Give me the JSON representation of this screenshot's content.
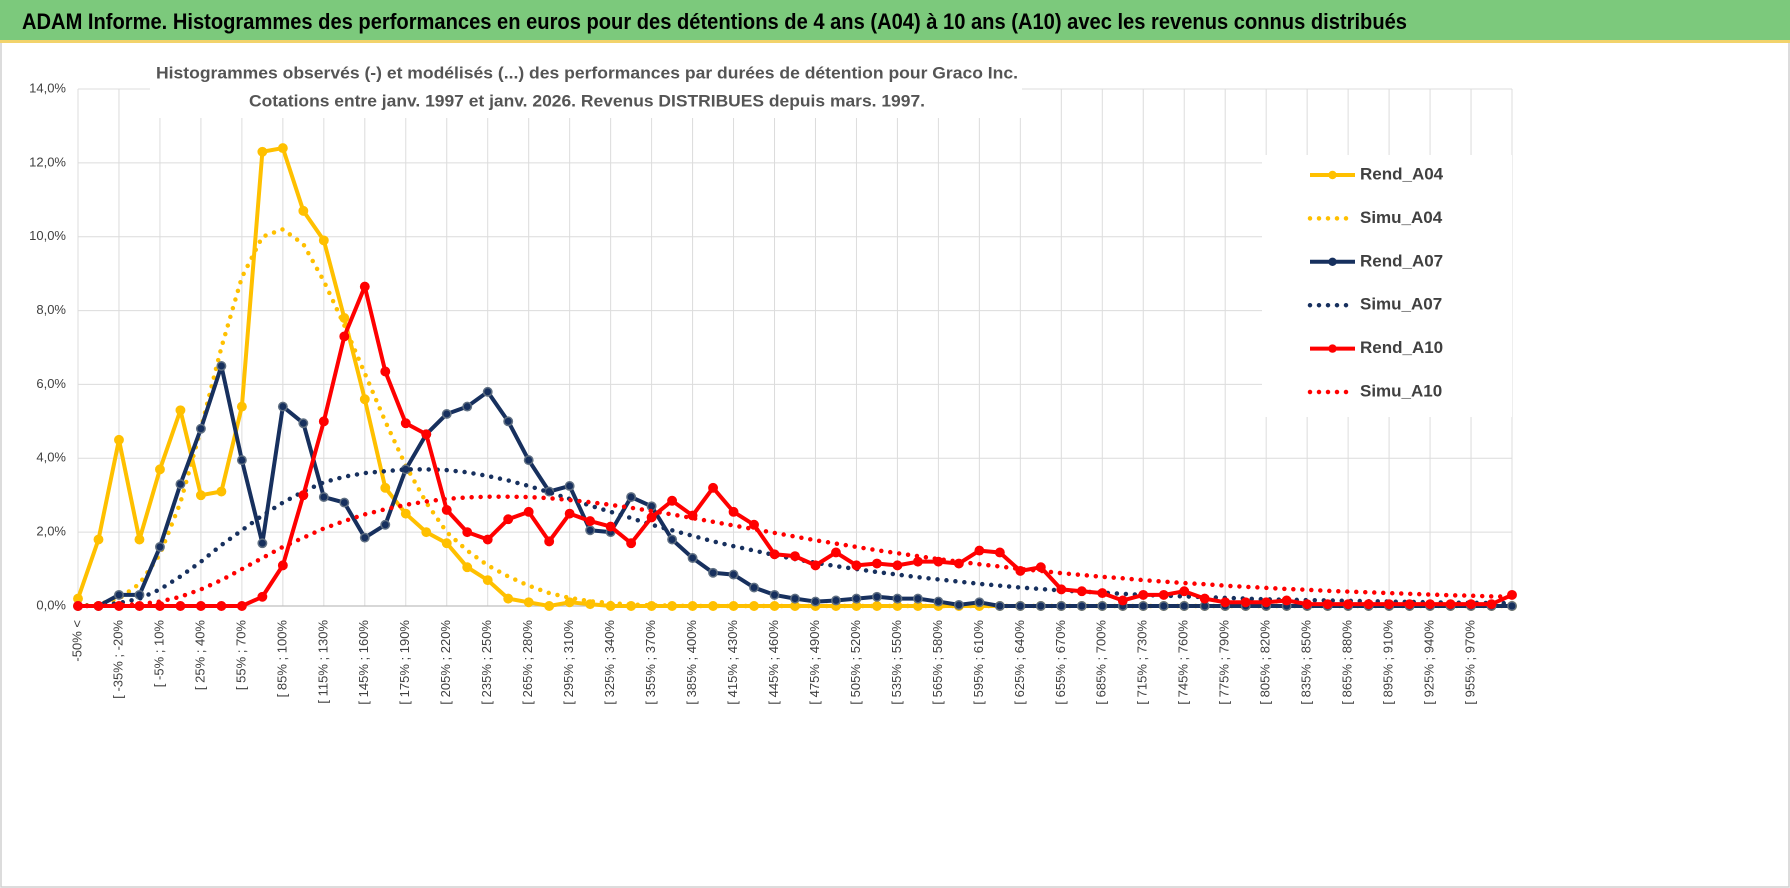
{
  "header": {
    "title": "ADAM Informe. Histogrammes des performances en euros pour des détentions de 4 ans (A04) à 10 ans (A10) avec les revenus connus distribués"
  },
  "chart_data": {
    "type": "line",
    "title": [
      "Histogrammes observés (-) et modélisés (...) des performances par durées de détention pour Graco Inc.",
      "Cotations entre janv. 1997 et janv. 2026. Revenus DISTRIBUES depuis mars. 1997."
    ],
    "categories": [
      "-50% <",
      null,
      "[ -35% ; -20%",
      null,
      "[ -5% ; 10%",
      null,
      "[ 25% ; 40%",
      null,
      "[ 55% ; 70%",
      null,
      "[ 85% ; 100%",
      null,
      "[ 115% ; 130%",
      null,
      "[ 145% ; 160%",
      null,
      "[ 175% ; 190%",
      null,
      "[ 205% ; 220%",
      null,
      "[ 235% ; 250%",
      null,
      "[ 265% ; 280%",
      null,
      "[ 295% ; 310%",
      null,
      "[ 325% ; 340%",
      null,
      "[ 355% ; 370%",
      null,
      "[ 385% ; 400%",
      null,
      "[ 415% ; 430%",
      null,
      "[ 445% ; 460%",
      null,
      "[ 475% ; 490%",
      null,
      "[ 505% ; 520%",
      null,
      "[ 535% ; 550%",
      null,
      "[ 565% ; 580%",
      null,
      "[ 595% ; 610%",
      null,
      "[ 625% ; 640%",
      null,
      "[ 655% ; 670%",
      null,
      "[ 685% ; 700%",
      null,
      "[ 715% ; 730%",
      null,
      "[ 745% ; 760%",
      null,
      "[ 775% ; 790%",
      null,
      "[ 805% ; 820%",
      null,
      "[ 835% ; 850%",
      null,
      "[ 865% ; 880%",
      null,
      "[ 895% ; 910%",
      null,
      "[ 925% ; 940%",
      null,
      "[ 955% ; 970%",
      null,
      null
    ],
    "series": [
      {
        "name": "Rend_A04",
        "color": "#ffc000",
        "style": "solid",
        "markers": true,
        "values": [
          0.2,
          1.8,
          4.5,
          1.8,
          3.7,
          5.3,
          3.0,
          3.1,
          5.4,
          12.3,
          12.4,
          10.7,
          9.9,
          7.8,
          5.6,
          3.2,
          2.5,
          2.0,
          1.7,
          1.05,
          0.7,
          0.2,
          0.1,
          0,
          0.1,
          0.05,
          0,
          0,
          0,
          0,
          0,
          0,
          0,
          0,
          0,
          0,
          0,
          0,
          0,
          0,
          0,
          0,
          0,
          0,
          0,
          0,
          0,
          0,
          0,
          0,
          0,
          0,
          0,
          0,
          0,
          0,
          0,
          0,
          0,
          0,
          0,
          0,
          0,
          0,
          0,
          0,
          0,
          0,
          0,
          0,
          0
        ]
      },
      {
        "name": "Simu_A04",
        "color": "#ffc000",
        "style": "dotted",
        "markers": false,
        "values": [
          0,
          0.05,
          0.2,
          0.6,
          1.4,
          2.8,
          4.8,
          7.0,
          8.9,
          10.0,
          10.2,
          9.8,
          8.8,
          7.6,
          6.3,
          5.0,
          3.8,
          2.8,
          2.0,
          1.5,
          1.1,
          0.8,
          0.55,
          0.35,
          0.22,
          0.13,
          0.08,
          0.04,
          0.02,
          0.01,
          0,
          0,
          0,
          0,
          0,
          0,
          0,
          0,
          0,
          0,
          0,
          0,
          0,
          0,
          0,
          0,
          0,
          0,
          0,
          0,
          0,
          0,
          0,
          0,
          0,
          0,
          0,
          0,
          0,
          0,
          0,
          0,
          0,
          0,
          0,
          0,
          0,
          0,
          0,
          0,
          0
        ]
      },
      {
        "name": "Rend_A07",
        "color": "#17305e",
        "style": "solid",
        "markers": true,
        "values": [
          0,
          0,
          0.3,
          0.3,
          1.6,
          3.3,
          4.8,
          6.5,
          3.95,
          1.7,
          5.4,
          4.95,
          2.95,
          2.8,
          1.85,
          2.2,
          3.7,
          4.65,
          5.2,
          5.4,
          5.8,
          5.0,
          3.95,
          3.1,
          3.25,
          2.05,
          2.0,
          2.95,
          2.7,
          1.8,
          1.3,
          0.9,
          0.85,
          0.5,
          0.3,
          0.2,
          0.12,
          0.15,
          0.2,
          0.25,
          0.2,
          0.2,
          0.12,
          0.03,
          0.1,
          0,
          0,
          0,
          0,
          0,
          0,
          0,
          0,
          0,
          0,
          0,
          0,
          0,
          0,
          0,
          0,
          0,
          0,
          0,
          0,
          0,
          0,
          0,
          0,
          0,
          0
        ]
      },
      {
        "name": "Simu_A07",
        "color": "#17305e",
        "style": "dotted",
        "markers": false,
        "values": [
          0,
          0.02,
          0.08,
          0.2,
          0.45,
          0.8,
          1.2,
          1.65,
          2.05,
          2.45,
          2.8,
          3.1,
          3.35,
          3.5,
          3.6,
          3.65,
          3.7,
          3.7,
          3.68,
          3.62,
          3.52,
          3.4,
          3.25,
          3.08,
          2.9,
          2.72,
          2.55,
          2.38,
          2.2,
          2.05,
          1.9,
          1.75,
          1.62,
          1.5,
          1.38,
          1.27,
          1.17,
          1.08,
          1.0,
          0.92,
          0.85,
          0.78,
          0.72,
          0.66,
          0.6,
          0.55,
          0.5,
          0.46,
          0.42,
          0.39,
          0.36,
          0.33,
          0.3,
          0.28,
          0.26,
          0.24,
          0.22,
          0.2,
          0.18,
          0.17,
          0.16,
          0.15,
          0.14,
          0.13,
          0.12,
          0.11,
          0.1,
          0.09,
          0.085,
          0.08,
          0.075
        ]
      },
      {
        "name": "Rend_A10",
        "color": "#ff0000",
        "style": "solid",
        "markers": true,
        "values": [
          0,
          0,
          0,
          0,
          0,
          0,
          0,
          0,
          0,
          0.25,
          1.1,
          3.0,
          5.0,
          7.3,
          8.65,
          6.35,
          4.95,
          4.65,
          2.6,
          2.0,
          1.8,
          2.35,
          2.55,
          1.75,
          2.5,
          2.3,
          2.15,
          1.7,
          2.4,
          2.85,
          2.45,
          3.2,
          2.55,
          2.2,
          1.4,
          1.35,
          1.1,
          1.45,
          1.1,
          1.15,
          1.1,
          1.2,
          1.2,
          1.15,
          1.5,
          1.45,
          0.95,
          1.05,
          0.45,
          0.4,
          0.35,
          0.15,
          0.3,
          0.3,
          0.4,
          0.2,
          0.1,
          0.1,
          0.1,
          0.15,
          0.05,
          0.05,
          0.05,
          0.05,
          0.05,
          0.05,
          0.05,
          0.05,
          0.05,
          0.05,
          0.3
        ]
      },
      {
        "name": "Simu_A10",
        "color": "#ff0000",
        "style": "dotted",
        "markers": false,
        "values": [
          0,
          0,
          0.02,
          0.05,
          0.12,
          0.25,
          0.45,
          0.7,
          1.0,
          1.3,
          1.6,
          1.85,
          2.1,
          2.3,
          2.48,
          2.62,
          2.74,
          2.83,
          2.9,
          2.94,
          2.96,
          2.96,
          2.95,
          2.92,
          2.87,
          2.81,
          2.74,
          2.66,
          2.57,
          2.48,
          2.38,
          2.28,
          2.18,
          2.08,
          1.98,
          1.88,
          1.78,
          1.69,
          1.6,
          1.51,
          1.43,
          1.35,
          1.27,
          1.2,
          1.13,
          1.07,
          1.0,
          0.95,
          0.89,
          0.84,
          0.79,
          0.75,
          0.7,
          0.66,
          0.62,
          0.59,
          0.55,
          0.52,
          0.49,
          0.46,
          0.44,
          0.41,
          0.39,
          0.37,
          0.35,
          0.33,
          0.31,
          0.29,
          0.28,
          0.26,
          0.25
        ]
      }
    ],
    "ylim": [
      0,
      14
    ],
    "yticks": [
      {
        "value": 0,
        "label": "0,0%"
      },
      {
        "value": 2,
        "label": "2,0%"
      },
      {
        "value": 4,
        "label": "4,0%"
      },
      {
        "value": 6,
        "label": "6,0%"
      },
      {
        "value": 8,
        "label": "8,0%"
      },
      {
        "value": 10,
        "label": "10,0%"
      },
      {
        "value": 12,
        "label": "12,0%"
      },
      {
        "value": 14,
        "label": "14,0%"
      }
    ],
    "grid": true,
    "legend": "right"
  }
}
